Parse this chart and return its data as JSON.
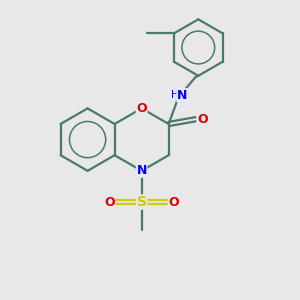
{
  "bg_color": "#e8e8e8",
  "bond_color": "#4a7a6a",
  "bond_width": 1.6,
  "N_color": "#0000ee",
  "O_color": "#dd0000",
  "S_color": "#cccc00",
  "figsize": [
    3.0,
    3.0
  ],
  "dpi": 100,
  "xlim": [
    0,
    10
  ],
  "ylim": [
    0,
    10
  ]
}
